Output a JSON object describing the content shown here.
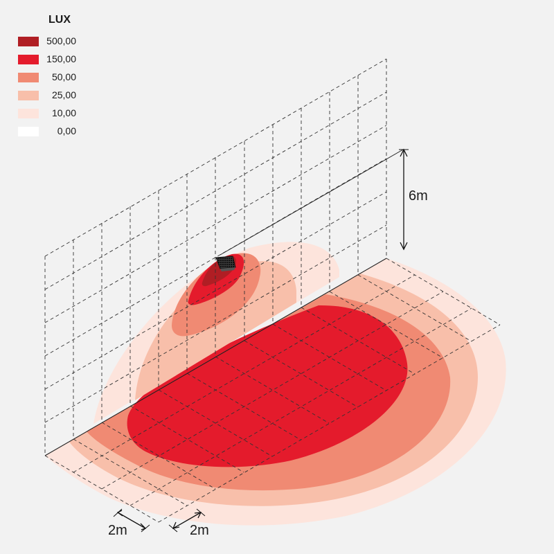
{
  "legend": {
    "title": "LUX",
    "items": [
      {
        "label": "500,00",
        "color": "#b01e24"
      },
      {
        "label": "150,00",
        "color": "#e41b2c"
      },
      {
        "label": "50,00",
        "color": "#f08a73"
      },
      {
        "label": "25,00",
        "color": "#f8bfaa"
      },
      {
        "label": "10,00",
        "color": "#fde4dc"
      },
      {
        "label": "0,00",
        "color": "#ffffff"
      }
    ]
  },
  "dimensions": {
    "height_label": "6m",
    "grid_x_label": "2m",
    "grid_y_label": "2m"
  },
  "device": {
    "icon": "floodlight-icon"
  }
}
